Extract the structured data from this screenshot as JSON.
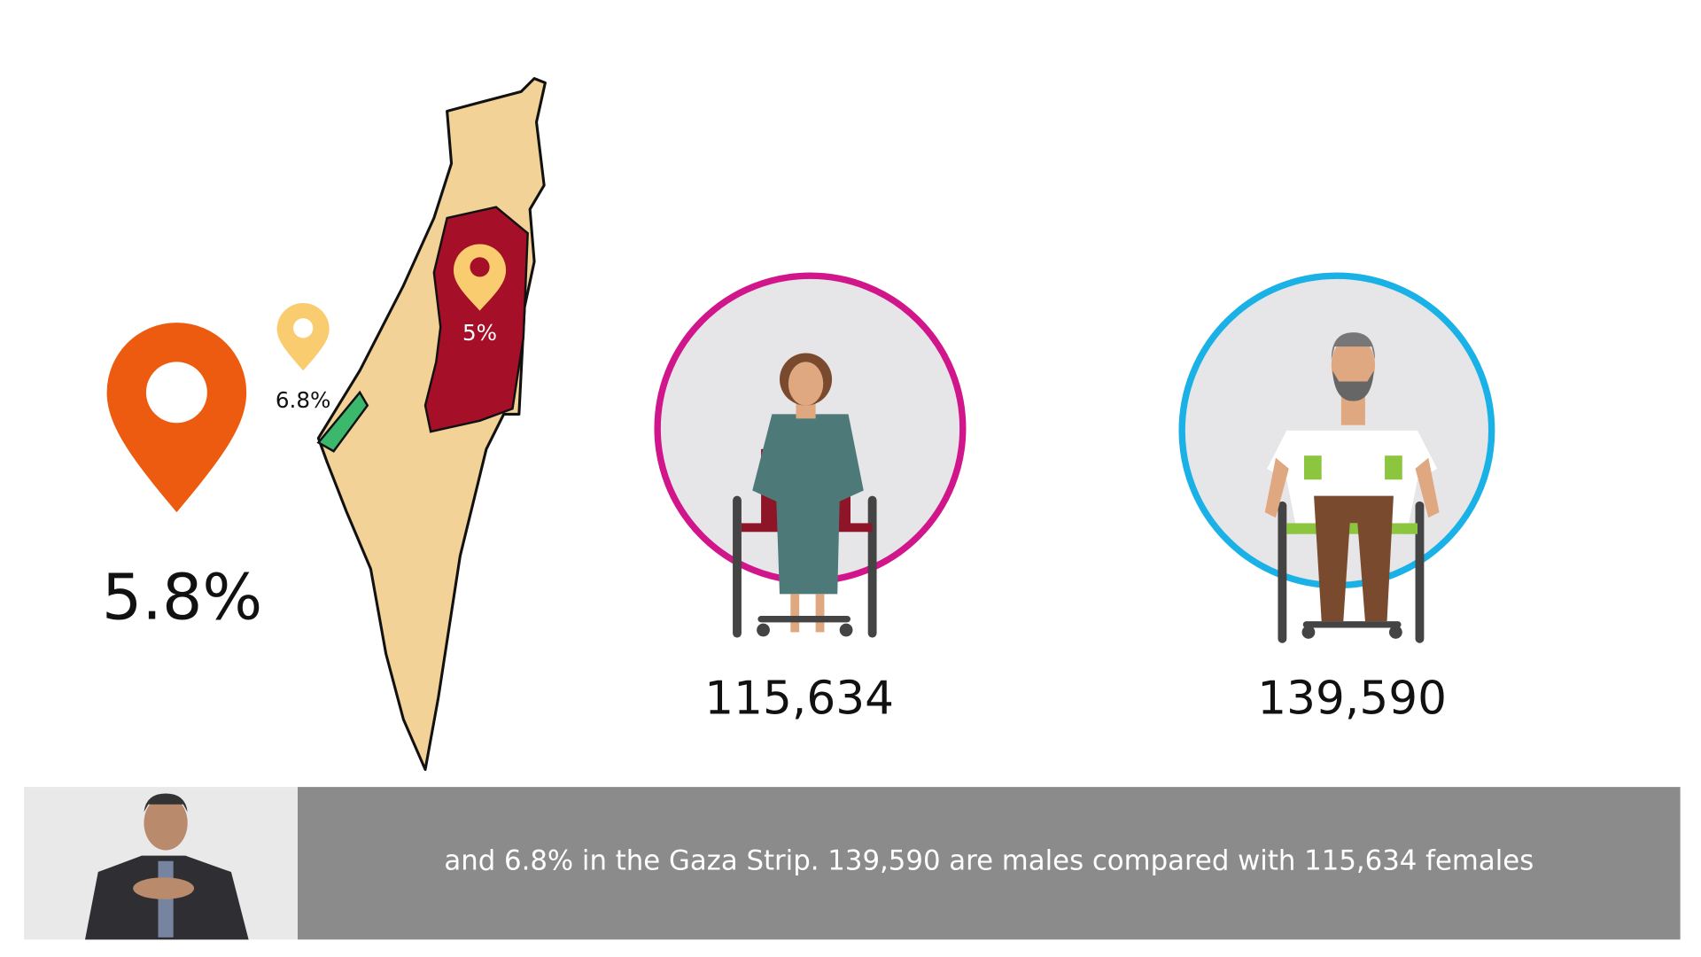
{
  "map": {
    "total": "5.8%",
    "gaza": "6.8%",
    "west_bank": "5%"
  },
  "figures": [
    {
      "count": "115,634"
    },
    {
      "count": "139,590"
    }
  ],
  "caption": "and 6.8% in the Gaza Strip. 139,590 are males compared with 115,634 females"
}
